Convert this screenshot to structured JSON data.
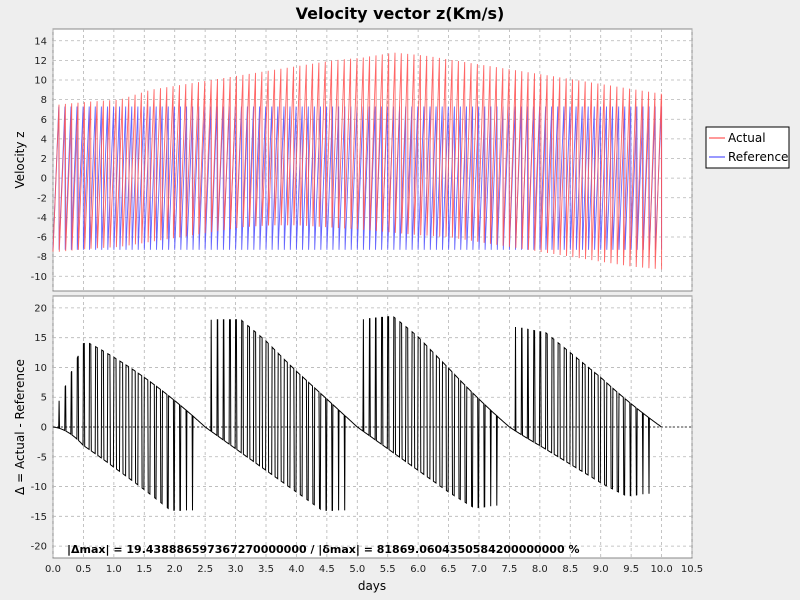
{
  "chart_data": [
    {
      "type": "line",
      "title": "Velocity vector z(Km/s)",
      "xlabel": "",
      "ylabel": "Velocity z",
      "xlim": [
        0,
        10.5
      ],
      "ylim": [
        -11.5,
        15.2
      ],
      "xticks": [
        0.0,
        0.5,
        1.0,
        1.5,
        2.0,
        2.5,
        3.0,
        3.5,
        4.0,
        4.5,
        5.0,
        5.5,
        6.0,
        6.5,
        7.0,
        7.5,
        8.0,
        8.5,
        9.0,
        9.5,
        10.0,
        10.5
      ],
      "yticks": [
        -10,
        -8,
        -6,
        -4,
        -2,
        0,
        2,
        4,
        6,
        8,
        10,
        12,
        14
      ],
      "grid": true,
      "legend": "right",
      "series": [
        {
          "name": "Actual",
          "color": "#ff5555",
          "periods_per_day": 9.6,
          "x_range": [
            0,
            10.0
          ],
          "amplitude_max": [
            7.5,
            7.8,
            8.0,
            9.0,
            9.5,
            10.0,
            10.5,
            11.0,
            11.5,
            12.0,
            12.3,
            12.8,
            12.5,
            12.0,
            11.5,
            11.0,
            10.5,
            10.0,
            9.5,
            9.0,
            8.5
          ],
          "amplitude_min": [
            -7.5,
            -7.2,
            -7.0,
            -6.5,
            -6.0,
            -5.5,
            -5.0,
            -4.8,
            -4.8,
            -5.0,
            -5.2,
            -5.5,
            -5.8,
            -6.0,
            -6.5,
            -7.0,
            -7.5,
            -8.0,
            -8.5,
            -9.0,
            -9.3
          ]
        },
        {
          "name": "Reference",
          "color": "#5555ff",
          "periods_per_day": 10.0,
          "x_range": [
            0,
            10.0
          ],
          "amplitude_max": [
            7.3
          ],
          "amplitude_min": [
            -7.3
          ]
        }
      ]
    },
    {
      "type": "line",
      "xlabel": "days",
      "ylabel": "Δ = Actual - Reference",
      "xlim": [
        0,
        10.5
      ],
      "ylim": [
        -22,
        22
      ],
      "xticks": [
        0.0,
        0.5,
        1.0,
        1.5,
        2.0,
        2.5,
        3.0,
        3.5,
        4.0,
        4.5,
        5.0,
        5.5,
        6.0,
        6.5,
        7.0,
        7.5,
        8.0,
        8.5,
        9.0,
        9.5,
        10.0,
        10.5
      ],
      "yticks": [
        -20,
        -15,
        -10,
        -5,
        0,
        5,
        10,
        15,
        20
      ],
      "grid": true,
      "series": [
        {
          "name": "Δ",
          "color": "#000000",
          "x_range": [
            0,
            10.0
          ],
          "envelope_max": [
            2,
            14,
            15,
            16,
            17,
            18,
            18,
            18.5,
            18,
            18,
            18,
            18.5,
            19.4,
            19,
            18,
            17,
            16,
            16,
            16,
            15,
            14
          ],
          "envelope_min": [
            -2,
            -12,
            -13,
            -13.5,
            -14,
            -14,
            -14,
            -14,
            -14,
            -14,
            -14,
            -14,
            -14,
            -14,
            -13.5,
            -13,
            -12,
            -12,
            -12,
            -11.5,
            -11
          ]
        }
      ],
      "reference_line": 0,
      "annotation": "|Δmax| = 19.438886597367270000000        /       |δmax| = 81869.0604350584200000000 %"
    }
  ],
  "legend": {
    "actual_label": "Actual",
    "reference_label": "Reference",
    "actual_color": "#ff5555",
    "reference_color": "#5555ff"
  }
}
